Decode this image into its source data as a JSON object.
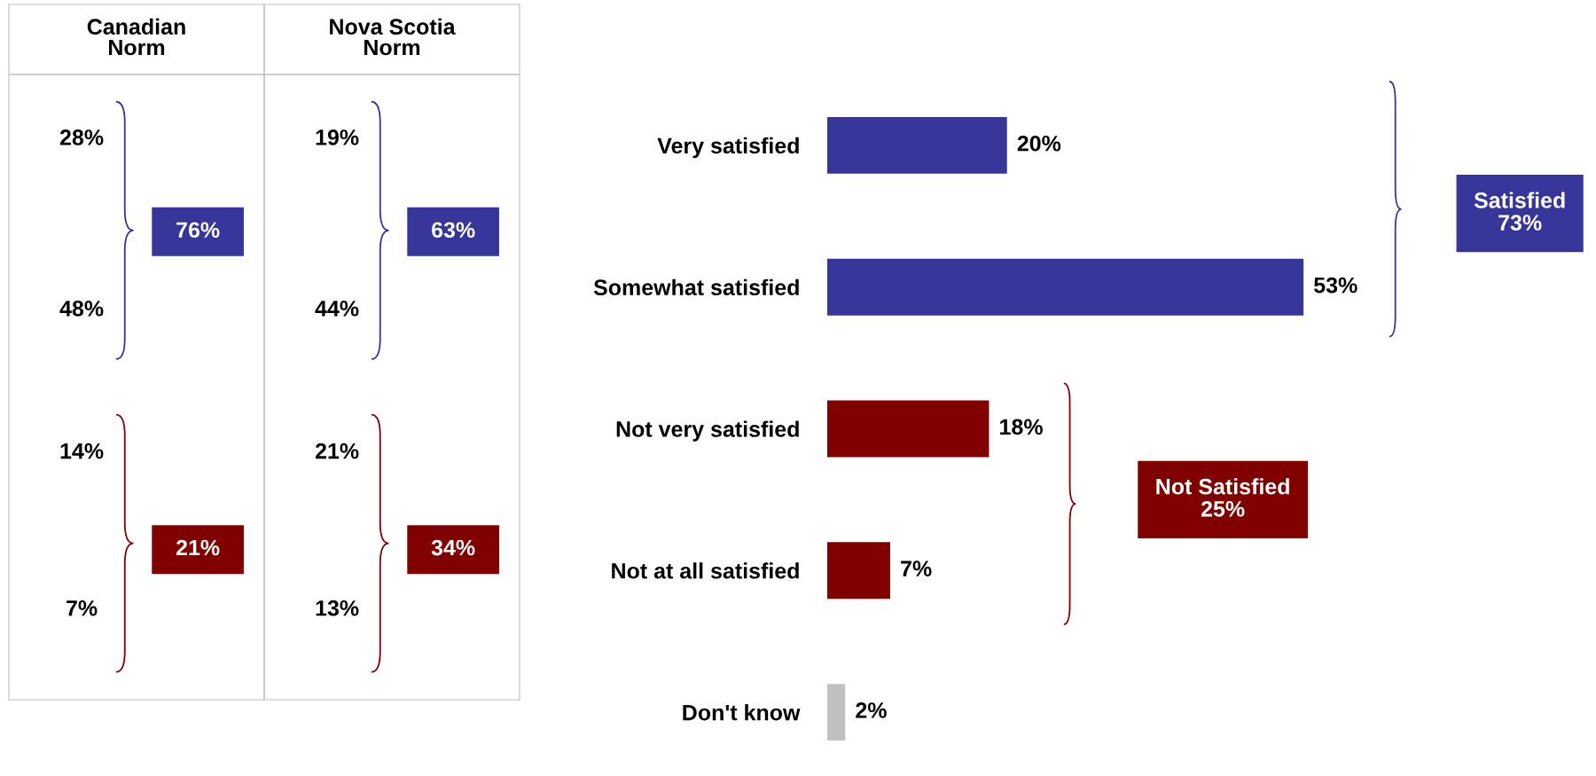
{
  "chart_data": [
    {
      "type": "other",
      "categories": [
        "Canadian\nNorm",
        "Nova Scotia\nNorm"
      ],
      "annotations": [
        "28%",
        "48%",
        "76%",
        "14%",
        "7%",
        "21%",
        "19%",
        "44%",
        "63%",
        "21%",
        "13%",
        "34%"
      ],
      "colors": [
        "#35359a",
        "#800000"
      ]
    },
    {
      "type": "bar",
      "orientation": "horizontal",
      "categories": [
        "Very satisfied",
        "Somewhat satisfied",
        "Not very satisfied",
        "Not at all satisfied",
        "Don't know"
      ],
      "values": [
        20,
        53,
        18,
        7,
        2
      ],
      "value_labels": [
        "20%",
        "53%",
        "18%",
        "7%",
        "2%"
      ],
      "colors": [
        "#35359a",
        "#35359a",
        "#800000",
        "#800000",
        "#c0c0c0"
      ],
      "tick_labels": "y",
      "annotations": [
        "Satisfied\n73%",
        "Not Satisfied\n25%"
      ]
    }
  ]
}
